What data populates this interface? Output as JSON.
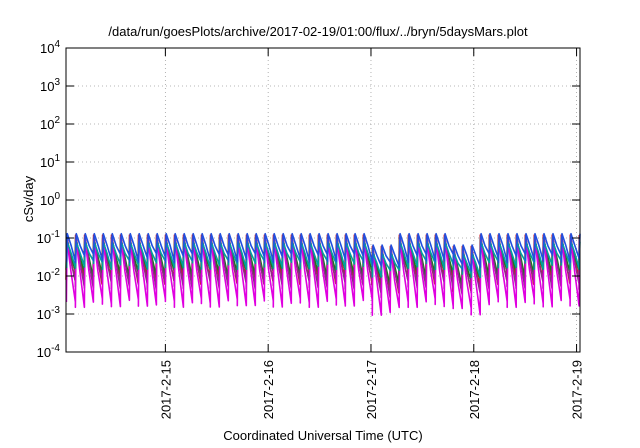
{
  "chart_data": {
    "type": "line",
    "title": "/data/run/goesPlots/archive/2017-02-19/01:00/flux/../bryn/5daysMars.plot",
    "xlabel": "Coordinated Universal Time (UTC)",
    "ylabel": "cSv/day",
    "yscale": "log",
    "ylim": [
      0.0001,
      10000
    ],
    "xlim": [
      "2017-02-14T00:48",
      "2017-02-19T00:48"
    ],
    "grid": true,
    "y_ticks": [
      {
        "mantissa": "10",
        "exp": "-4",
        "value": 0.0001
      },
      {
        "mantissa": "10",
        "exp": "-3",
        "value": 0.001
      },
      {
        "mantissa": "10",
        "exp": "-2",
        "value": 0.01
      },
      {
        "mantissa": "10",
        "exp": "-1",
        "value": 0.1
      },
      {
        "mantissa": "10",
        "exp": "0",
        "value": 1
      },
      {
        "mantissa": "10",
        "exp": "1",
        "value": 10
      },
      {
        "mantissa": "10",
        "exp": "2",
        "value": 100
      },
      {
        "mantissa": "10",
        "exp": "3",
        "value": 1000
      },
      {
        "mantissa": "10",
        "exp": "4",
        "value": 10000
      }
    ],
    "x_ticks": [
      {
        "label": "2017-2-15",
        "value": "2017-02-15T00:00"
      },
      {
        "label": "2017-2-16",
        "value": "2017-02-16T00:00"
      },
      {
        "label": "2017-2-17",
        "value": "2017-02-17T00:00"
      },
      {
        "label": "2017-2-18",
        "value": "2017-02-18T00:00"
      },
      {
        "label": "2017-2-19",
        "value": "2017-02-19T00:00"
      }
    ],
    "pattern": "sawtooth: values spike near 0.1 every ~2 hours then decay; sun-shadowed gaps near 2017-02-17 and 2017-02-18",
    "series": [
      {
        "color": "#d01818",
        "peak": 0.12,
        "trough": 0.008
      },
      {
        "color": "#1a7a1a",
        "peak": 0.1,
        "trough": 0.012
      },
      {
        "color": "#8a2a8a",
        "peak": 0.11,
        "trough": 0.006
      },
      {
        "color": "#e000e0",
        "peak": 0.09,
        "trough": 0.002
      },
      {
        "color": "#00a0a0",
        "peak": 0.08,
        "trough": 0.02
      },
      {
        "color": "#2050e0",
        "peak": 0.13,
        "trough": 0.03
      }
    ]
  }
}
